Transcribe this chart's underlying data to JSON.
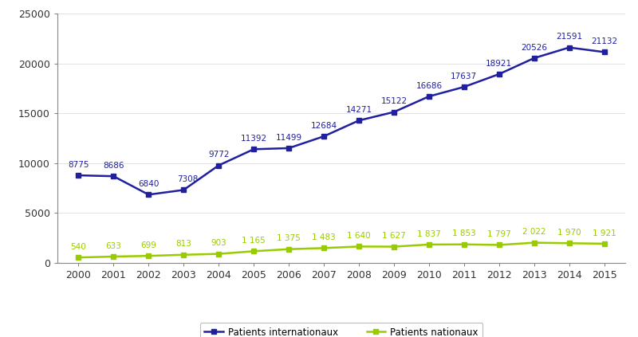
{
  "years": [
    2000,
    2001,
    2002,
    2003,
    2004,
    2005,
    2006,
    2007,
    2008,
    2009,
    2010,
    2011,
    2012,
    2013,
    2014,
    2015
  ],
  "internationaux": [
    8775,
    8686,
    6840,
    7308,
    9772,
    11392,
    11499,
    12684,
    14271,
    15122,
    16686,
    17637,
    18921,
    20526,
    21591,
    21132
  ],
  "nationaux": [
    540,
    633,
    699,
    813,
    903,
    1165,
    1375,
    1483,
    1640,
    1627,
    1837,
    1853,
    1797,
    2022,
    1970,
    1921
  ],
  "color_internationaux": "#1f1f9f",
  "color_nationaux": "#99cc00",
  "ylim": [
    0,
    25000
  ],
  "yticks": [
    0,
    5000,
    10000,
    15000,
    20000,
    25000
  ],
  "ytick_labels": [
    "0",
    "5000",
    "10000",
    "15000",
    "20000",
    "25000"
  ],
  "legend_label_int": "Patients internationaux",
  "legend_label_nat": "Patients nationaux",
  "background_color": "#ffffff",
  "annotation_fontsize": 7.5,
  "line_width": 1.8,
  "marker": "s",
  "marker_size": 5,
  "nat_labels": [
    "540",
    "633",
    "699",
    "813",
    "903",
    "1 165",
    "1 375",
    "1 483",
    "1 640",
    "1 627",
    "1 837",
    "1 853",
    "1 797",
    "2 022",
    "1 970",
    "1 921"
  ],
  "int_labels": [
    "8775",
    "8686",
    "6840",
    "7308",
    "9772",
    "11392",
    "11499",
    "12684",
    "14271",
    "15122",
    "16686",
    "17637",
    "18921",
    "20526",
    "21591",
    "21132"
  ]
}
